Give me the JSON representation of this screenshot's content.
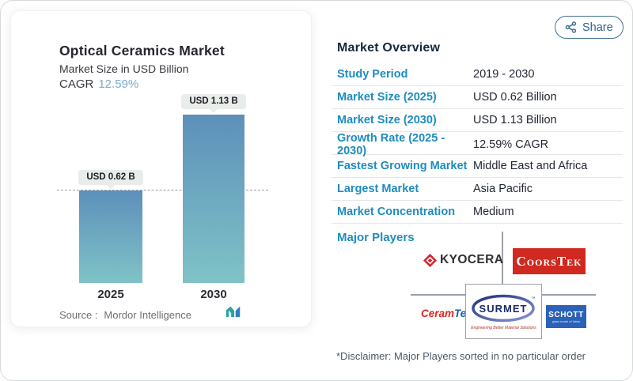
{
  "share": {
    "label": "Share"
  },
  "chart_panel": {
    "title": "Optical Ceramics Market",
    "subtitle": "Market Size in USD Billion",
    "cagr_label": "CAGR",
    "cagr_value": "12.59%",
    "bars": [
      {
        "year": "2025",
        "label": "USD 0.62 B",
        "value": 0.62
      },
      {
        "year": "2030",
        "label": "USD 1.13 B",
        "value": 1.13
      }
    ],
    "source_label": "Source :",
    "source_value": "Mordor Intelligence"
  },
  "chart_data": {
    "type": "bar",
    "title": "Optical Ceramics Market",
    "subtitle": "Market Size in USD Billion",
    "categories": [
      "2025",
      "2030"
    ],
    "values": [
      0.62,
      1.13
    ],
    "ylabel": "Market Size (USD Billion)",
    "ylim": [
      0,
      1.13
    ],
    "annotations": [
      "USD 0.62 B",
      "USD 1.13 B"
    ],
    "cagr": "12.59%",
    "reference_line": 0.62,
    "grid": false,
    "legend": false,
    "bar_gradient": [
      "#5d90ba",
      "#7fc3c7"
    ]
  },
  "overview": {
    "heading": "Market Overview",
    "rows": [
      {
        "label": "Study Period",
        "value": "2019 - 2030"
      },
      {
        "label": "Market Size (2025)",
        "value": "USD 0.62 Billion"
      },
      {
        "label": "Market Size (2030)",
        "value": "USD 1.13 Billion"
      },
      {
        "label": "Growth Rate (2025 - 2030)",
        "value": "12.59% CAGR"
      },
      {
        "label": "Fastest Growing Market",
        "value": "Middle East and Africa"
      },
      {
        "label": "Largest Market",
        "value": "Asia Pacific"
      },
      {
        "label": "Market Concentration",
        "value": "Medium"
      }
    ],
    "major_players_label": "Major Players",
    "disclaimer": "*Disclaimer: Major Players sorted in no particular order"
  },
  "logos": {
    "kyocera": {
      "text": "KYOCERA"
    },
    "coorstek": {
      "text": "CoorsTek"
    },
    "ceramtec": {
      "ceram": "Ceram",
      "tec": "Tec"
    },
    "surmet": {
      "text": "SURMET",
      "tm": "™",
      "tagline": "Engineering Better Material Solutions"
    },
    "schott": {
      "text": "SCHOTT",
      "tagline": "glass made of ideas"
    }
  },
  "colors": {
    "accent_blue": "#1e8cbe",
    "bar_top": "#5d90ba",
    "bar_bottom": "#7fc3c7",
    "cagr_value_blue": "#7ea9cd",
    "share_border": "#41718f",
    "kyocera_red": "#d5232a",
    "coorstek_red": "#d0291f",
    "schott_blue": "#2b62b8",
    "ceramtec_red": "#e2231a",
    "ceramtec_blue": "#1a5dab",
    "mi_teal": "#2aa49c",
    "mi_blue": "#2e7fc1"
  }
}
